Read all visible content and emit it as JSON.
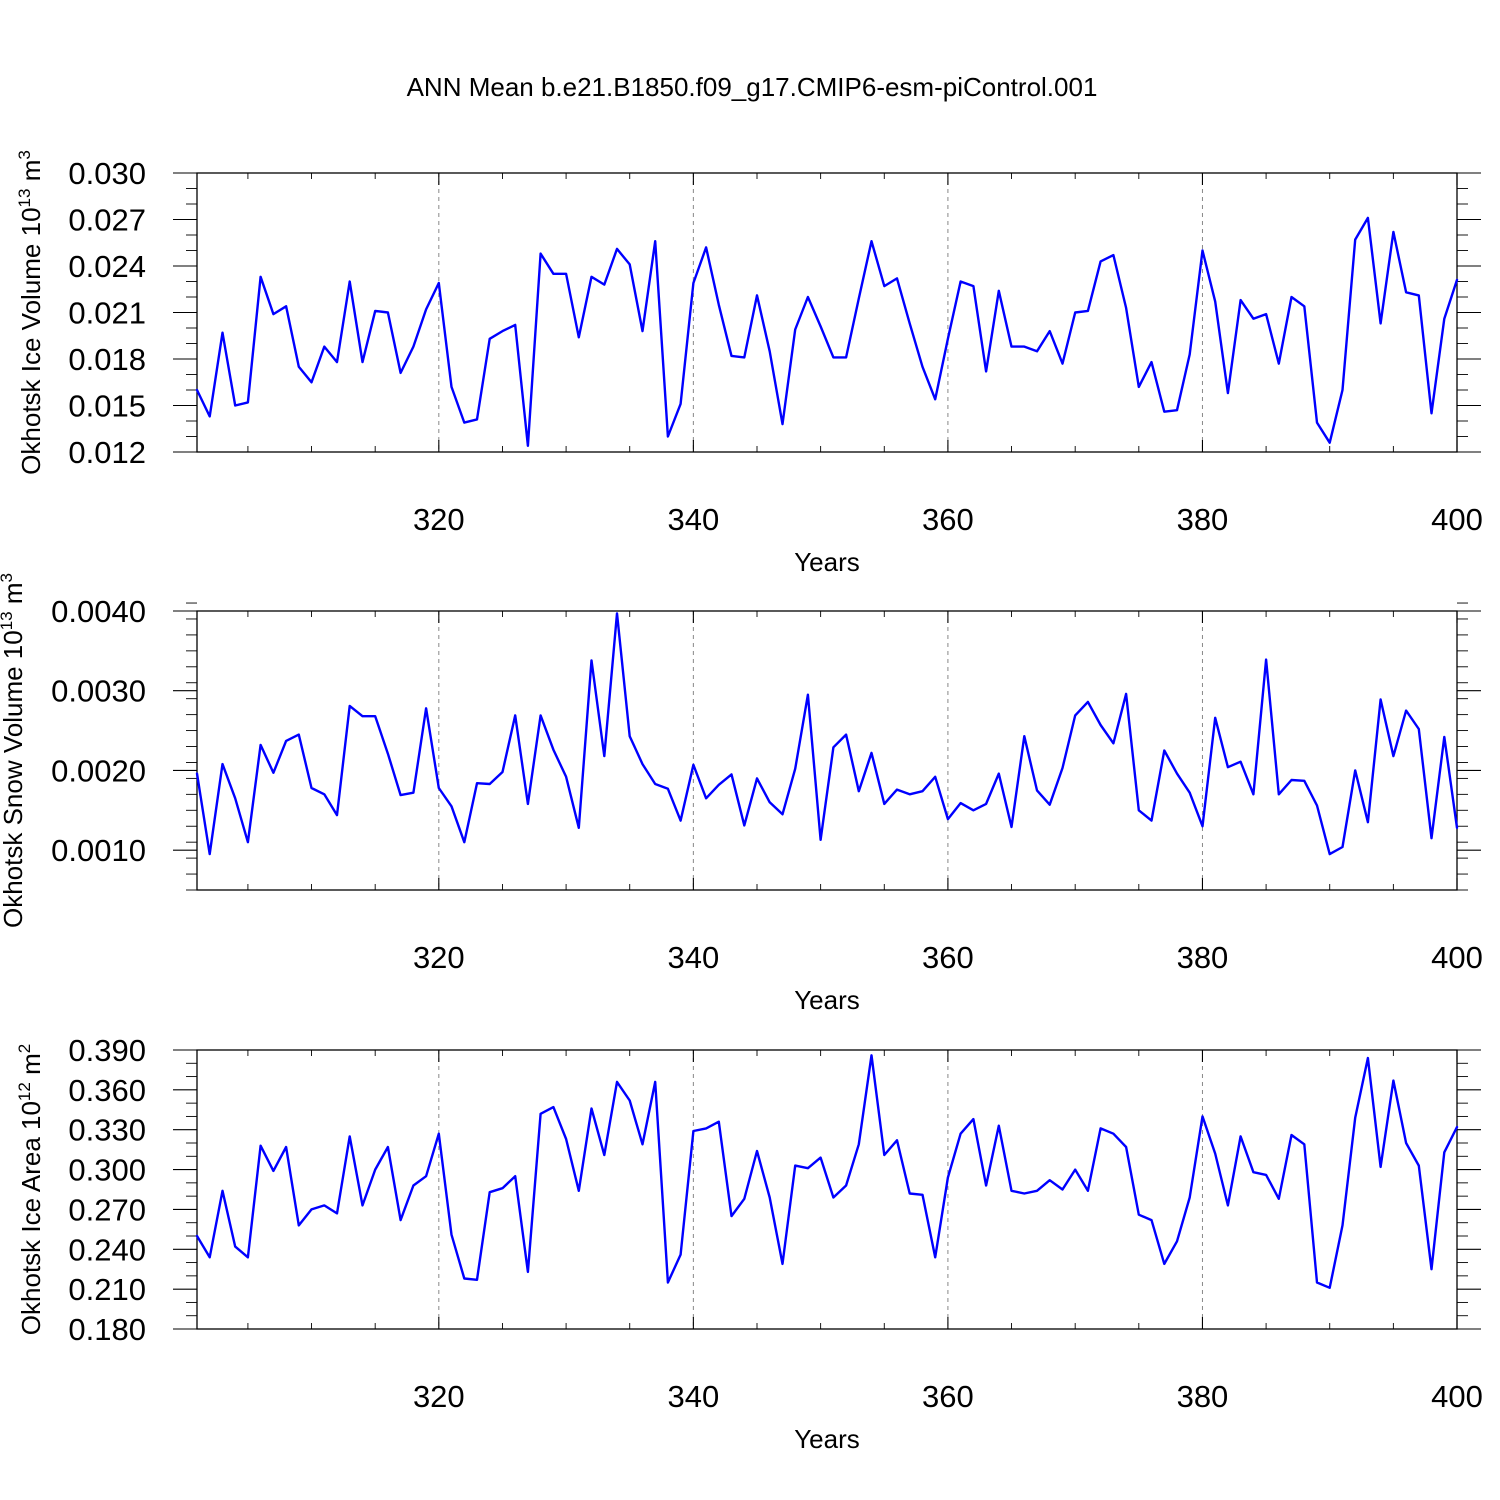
{
  "colors": {
    "line": "#0000ff",
    "axis": "#000000",
    "grid": "#888888",
    "background": "#ffffff"
  },
  "chart_data": [
    {
      "type": "line",
      "title": "ANN Mean b.e21.B1850.f09_g17.CMIP6-esm-piControl.001",
      "xlabel": "Years",
      "ylabel_text": "Okhotsk Ice Volume 10",
      "ylabel_exp": "13",
      "ylabel_unit": " m",
      "ylabel_unit_exp": "3",
      "xlim": [
        301,
        400
      ],
      "ylim": [
        0.012,
        0.03
      ],
      "xticks": [
        320,
        340,
        360,
        380,
        400
      ],
      "xtick_labels": [
        "320",
        "340",
        "360",
        "380",
        "400"
      ],
      "yticks": [
        0.012,
        0.015,
        0.018,
        0.021,
        0.024,
        0.027,
        0.03
      ],
      "ytick_labels": [
        "0.012",
        "0.015",
        "0.018",
        "0.021",
        "0.024",
        "0.027",
        "0.030"
      ],
      "y_minor_step": 0.001,
      "x_minor_step": 5,
      "grid": "vertical-dashed",
      "x": [
        301,
        302,
        303,
        304,
        305,
        306,
        307,
        308,
        309,
        310,
        311,
        312,
        313,
        314,
        315,
        316,
        317,
        318,
        319,
        320,
        321,
        322,
        323,
        324,
        325,
        326,
        327,
        328,
        329,
        330,
        331,
        332,
        333,
        334,
        335,
        336,
        337,
        338,
        339,
        340,
        341,
        342,
        343,
        344,
        345,
        346,
        347,
        348,
        349,
        350,
        351,
        352,
        353,
        354,
        355,
        356,
        357,
        358,
        359,
        360,
        361,
        362,
        363,
        364,
        365,
        366,
        367,
        368,
        369,
        370,
        371,
        372,
        373,
        374,
        375,
        376,
        377,
        378,
        379,
        380,
        381,
        382,
        383,
        384,
        385,
        386,
        387,
        388,
        389,
        390,
        391,
        392,
        393,
        394,
        395,
        396,
        397,
        398,
        399,
        400
      ],
      "series": [
        {
          "name": "Okhotsk Ice Volume",
          "values": [
            0.016,
            0.0143,
            0.0197,
            0.015,
            0.0152,
            0.0233,
            0.0209,
            0.0214,
            0.0175,
            0.0165,
            0.0188,
            0.0178,
            0.023,
            0.0178,
            0.0211,
            0.021,
            0.0171,
            0.0188,
            0.0212,
            0.0229,
            0.0162,
            0.0139,
            0.0141,
            0.0193,
            0.0198,
            0.0202,
            0.0124,
            0.0248,
            0.0235,
            0.0235,
            0.0194,
            0.0233,
            0.0228,
            0.0251,
            0.0241,
            0.0198,
            0.0256,
            0.013,
            0.0151,
            0.0229,
            0.0252,
            0.0215,
            0.0182,
            0.0181,
            0.0221,
            0.0185,
            0.0138,
            0.0199,
            0.022,
            0.0201,
            0.0181,
            0.0181,
            0.0219,
            0.0256,
            0.0227,
            0.0232,
            0.0203,
            0.0175,
            0.0154,
            0.0193,
            0.023,
            0.0227,
            0.0172,
            0.0224,
            0.0188,
            0.0188,
            0.0185,
            0.0198,
            0.0177,
            0.021,
            0.0211,
            0.0243,
            0.0247,
            0.0213,
            0.0162,
            0.0178,
            0.0146,
            0.0147,
            0.0183,
            0.025,
            0.0217,
            0.0158,
            0.0218,
            0.0206,
            0.0209,
            0.0177,
            0.022,
            0.0214,
            0.0139,
            0.0126,
            0.016,
            0.0257,
            0.0271,
            0.0203,
            0.0262,
            0.0223,
            0.0221,
            0.0145,
            0.0206,
            0.0231
          ]
        }
      ]
    },
    {
      "type": "line",
      "title": "",
      "xlabel": "Years",
      "ylabel_text": "Okhotsk Snow Volume 10",
      "ylabel_exp": "13",
      "ylabel_unit": " m",
      "ylabel_unit_exp": "3",
      "xlim": [
        301,
        400
      ],
      "ylim": [
        0.0005,
        0.004
      ],
      "xticks": [
        320,
        340,
        360,
        380,
        400
      ],
      "xtick_labels": [
        "320",
        "340",
        "360",
        "380",
        "400"
      ],
      "yticks": [
        0.001,
        0.002,
        0.003,
        0.004
      ],
      "ytick_labels": [
        "0.0010",
        "0.0020",
        "0.0030",
        "0.0040"
      ],
      "y_minor_step": 0.0002,
      "x_minor_step": 5,
      "grid": "vertical-dashed",
      "x": [
        301,
        302,
        303,
        304,
        305,
        306,
        307,
        308,
        309,
        310,
        311,
        312,
        313,
        314,
        315,
        316,
        317,
        318,
        319,
        320,
        321,
        322,
        323,
        324,
        325,
        326,
        327,
        328,
        329,
        330,
        331,
        332,
        333,
        334,
        335,
        336,
        337,
        338,
        339,
        340,
        341,
        342,
        343,
        344,
        345,
        346,
        347,
        348,
        349,
        350,
        351,
        352,
        353,
        354,
        355,
        356,
        357,
        358,
        359,
        360,
        361,
        362,
        363,
        364,
        365,
        366,
        367,
        368,
        369,
        370,
        371,
        372,
        373,
        374,
        375,
        376,
        377,
        378,
        379,
        380,
        381,
        382,
        383,
        384,
        385,
        386,
        387,
        388,
        389,
        390,
        391,
        392,
        393,
        394,
        395,
        396,
        397,
        398,
        399,
        400
      ],
      "series": [
        {
          "name": "Okhotsk Snow Volume",
          "values": [
            0.00196,
            0.00095,
            0.00208,
            0.00165,
            0.0011,
            0.00232,
            0.00197,
            0.00237,
            0.00245,
            0.00178,
            0.0017,
            0.00144,
            0.00281,
            0.00268,
            0.00268,
            0.00221,
            0.00169,
            0.00172,
            0.00278,
            0.00178,
            0.00155,
            0.0011,
            0.00184,
            0.00183,
            0.00198,
            0.00269,
            0.00158,
            0.00269,
            0.00226,
            0.00192,
            0.00128,
            0.00338,
            0.00218,
            0.00397,
            0.00243,
            0.00208,
            0.00183,
            0.00177,
            0.00137,
            0.00207,
            0.00165,
            0.00182,
            0.00195,
            0.00131,
            0.0019,
            0.0016,
            0.00145,
            0.00202,
            0.00295,
            0.00113,
            0.00229,
            0.00245,
            0.00174,
            0.00222,
            0.00158,
            0.00176,
            0.0017,
            0.00174,
            0.00192,
            0.00139,
            0.00159,
            0.0015,
            0.00158,
            0.00196,
            0.00129,
            0.00243,
            0.00175,
            0.00157,
            0.00203,
            0.00269,
            0.00286,
            0.00257,
            0.00234,
            0.00296,
            0.0015,
            0.00137,
            0.00225,
            0.00196,
            0.00172,
            0.0013,
            0.00266,
            0.00204,
            0.00211,
            0.0017,
            0.00339,
            0.0017,
            0.00188,
            0.00187,
            0.00156,
            0.00095,
            0.00104,
            0.002,
            0.00135,
            0.00289,
            0.00218,
            0.00275,
            0.00252,
            0.00115,
            0.00242,
            0.00128
          ]
        }
      ]
    },
    {
      "type": "line",
      "title": "",
      "xlabel": "Years",
      "ylabel_text": "Okhotsk Ice Area 10",
      "ylabel_exp": "12",
      "ylabel_unit": " m",
      "ylabel_unit_exp": "2",
      "xlim": [
        301,
        400
      ],
      "ylim": [
        0.18,
        0.39
      ],
      "xticks": [
        320,
        340,
        360,
        380,
        400
      ],
      "xtick_labels": [
        "320",
        "340",
        "360",
        "380",
        "400"
      ],
      "yticks": [
        0.18,
        0.21,
        0.24,
        0.27,
        0.3,
        0.33,
        0.36,
        0.39
      ],
      "ytick_labels": [
        "0.180",
        "0.210",
        "0.240",
        "0.270",
        "0.300",
        "0.330",
        "0.360",
        "0.390"
      ],
      "y_minor_step": 0.01,
      "x_minor_step": 5,
      "grid": "vertical-dashed",
      "x": [
        301,
        302,
        303,
        304,
        305,
        306,
        307,
        308,
        309,
        310,
        311,
        312,
        313,
        314,
        315,
        316,
        317,
        318,
        319,
        320,
        321,
        322,
        323,
        324,
        325,
        326,
        327,
        328,
        329,
        330,
        331,
        332,
        333,
        334,
        335,
        336,
        337,
        338,
        339,
        340,
        341,
        342,
        343,
        344,
        345,
        346,
        347,
        348,
        349,
        350,
        351,
        352,
        353,
        354,
        355,
        356,
        357,
        358,
        359,
        360,
        361,
        362,
        363,
        364,
        365,
        366,
        367,
        368,
        369,
        370,
        371,
        372,
        373,
        374,
        375,
        376,
        377,
        378,
        379,
        380,
        381,
        382,
        383,
        384,
        385,
        386,
        387,
        388,
        389,
        390,
        391,
        392,
        393,
        394,
        395,
        396,
        397,
        398,
        399,
        400
      ],
      "series": [
        {
          "name": "Okhotsk Ice Area",
          "values": [
            0.25,
            0.234,
            0.284,
            0.242,
            0.234,
            0.318,
            0.299,
            0.317,
            0.258,
            0.27,
            0.273,
            0.267,
            0.325,
            0.273,
            0.3,
            0.317,
            0.262,
            0.288,
            0.295,
            0.327,
            0.251,
            0.218,
            0.217,
            0.283,
            0.286,
            0.295,
            0.223,
            0.342,
            0.347,
            0.323,
            0.284,
            0.346,
            0.311,
            0.366,
            0.352,
            0.319,
            0.366,
            0.215,
            0.236,
            0.329,
            0.331,
            0.336,
            0.265,
            0.278,
            0.314,
            0.279,
            0.229,
            0.303,
            0.301,
            0.309,
            0.279,
            0.288,
            0.319,
            0.386,
            0.311,
            0.322,
            0.282,
            0.281,
            0.234,
            0.294,
            0.327,
            0.338,
            0.288,
            0.333,
            0.284,
            0.282,
            0.284,
            0.292,
            0.285,
            0.3,
            0.284,
            0.331,
            0.327,
            0.317,
            0.266,
            0.262,
            0.229,
            0.246,
            0.279,
            0.34,
            0.312,
            0.273,
            0.325,
            0.298,
            0.296,
            0.278,
            0.326,
            0.319,
            0.215,
            0.211,
            0.258,
            0.339,
            0.384,
            0.302,
            0.367,
            0.32,
            0.303,
            0.225,
            0.313,
            0.332
          ]
        }
      ]
    }
  ]
}
